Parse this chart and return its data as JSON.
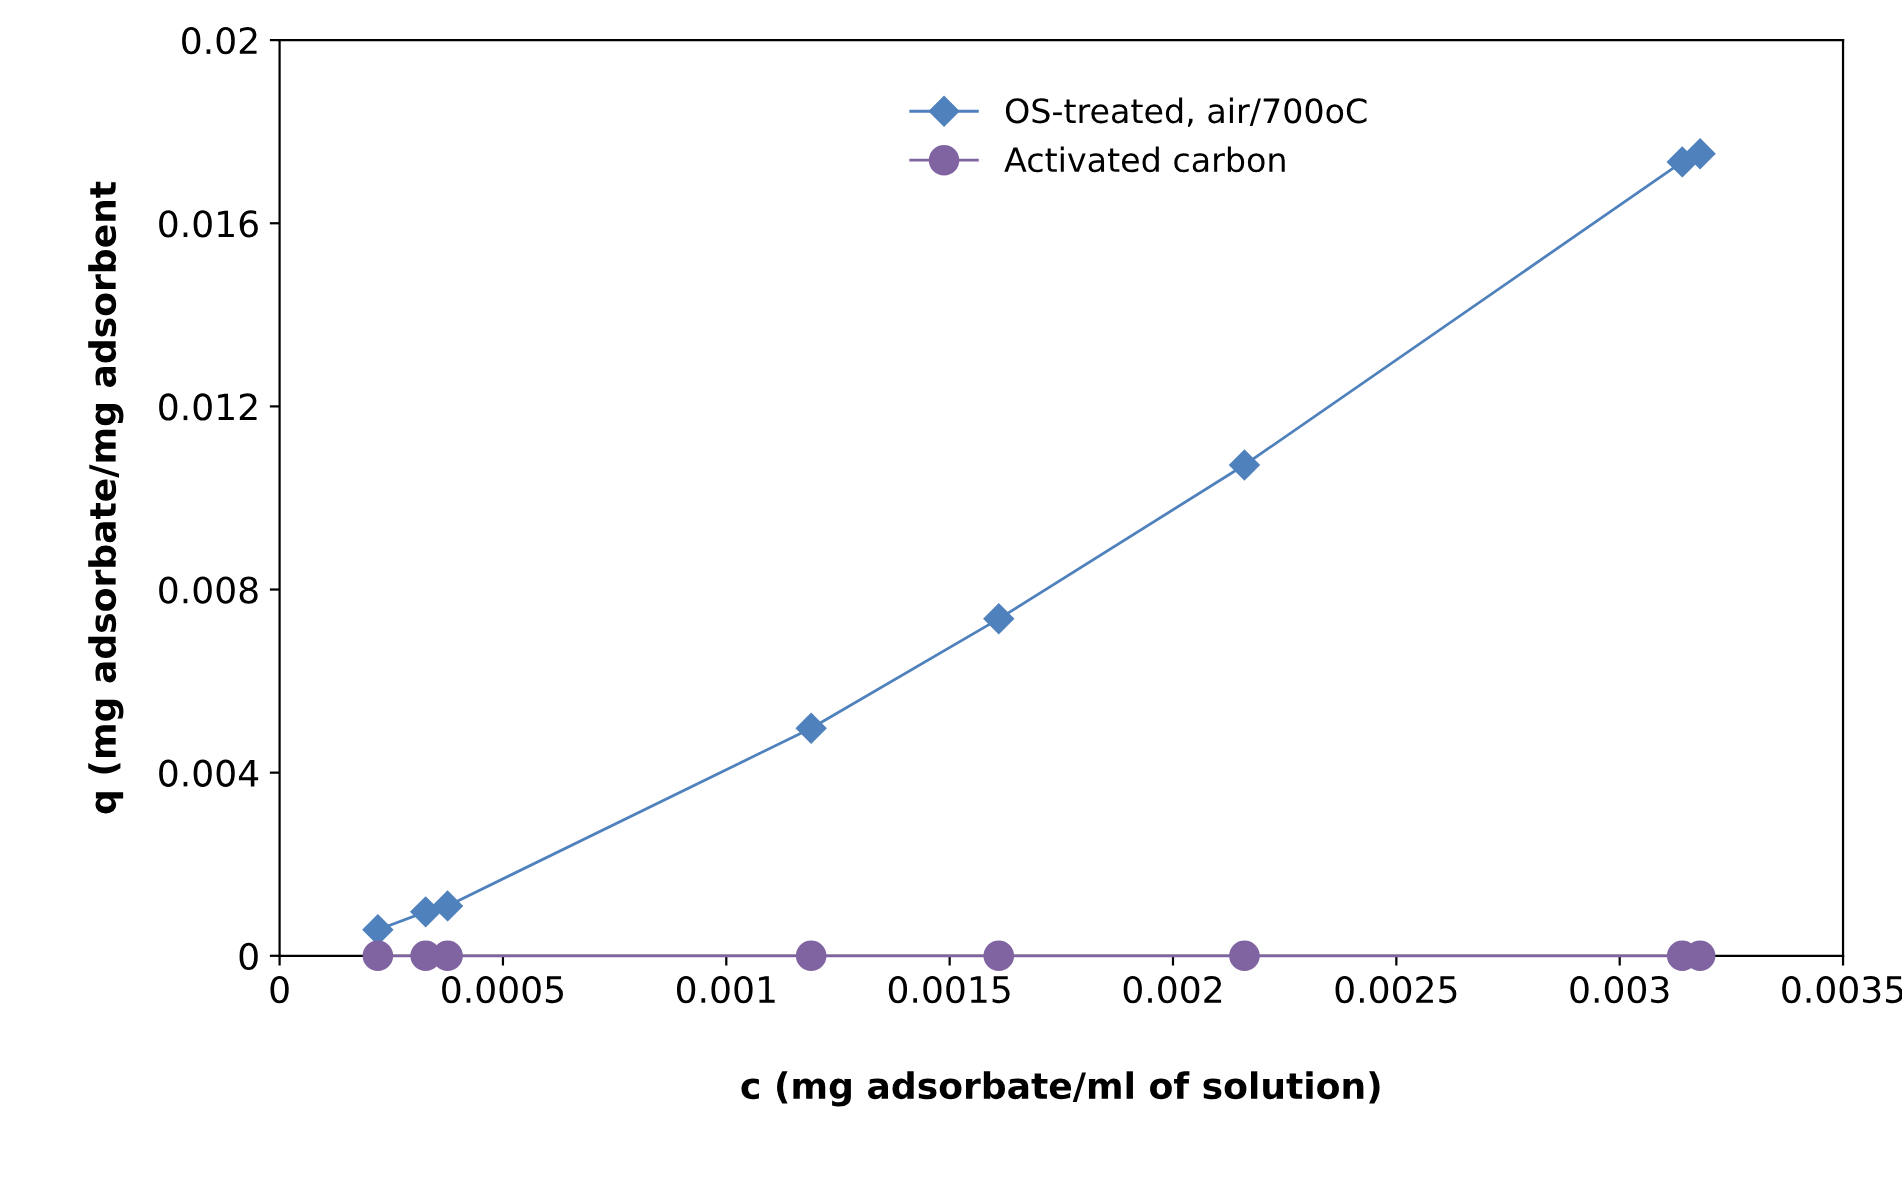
{
  "chart_data": {
    "type": "line",
    "xlabel": "c (mg adsorbate/ml of solution)",
    "ylabel": "q (mg adsorbate/mg adsorbent",
    "xlim": [
      0,
      0.0035
    ],
    "xticks": [
      0,
      0.0005,
      0.001,
      0.0015,
      0.002,
      0.0025,
      0.003,
      0.0035
    ],
    "ylim": [
      0,
      0.02
    ],
    "yticks": [
      0,
      0.004,
      0.008,
      0.012,
      0.016,
      0.02
    ],
    "grid": false,
    "legend": "top",
    "series": [
      {
        "name": "OS-treated, air/700oC",
        "color": "#4f81bd",
        "marker": "diamond",
        "x": [
          0.00022,
          0.000327,
          0.000376,
          0.00119,
          0.00161,
          0.00216,
          0.00314,
          0.00318
        ],
        "values": [
          0.00057,
          0.00096,
          0.00109,
          0.00497,
          0.00736,
          0.01072,
          0.01734,
          0.01752
        ]
      },
      {
        "name": "Activated carbon",
        "color": "#8064a2",
        "marker": "circle",
        "x": [
          0.00022,
          0.000327,
          0.000376,
          0.00119,
          0.00161,
          0.00216,
          0.00314,
          0.00318
        ],
        "values": [
          0,
          0,
          0,
          0,
          0,
          0,
          0,
          0
        ]
      }
    ]
  }
}
